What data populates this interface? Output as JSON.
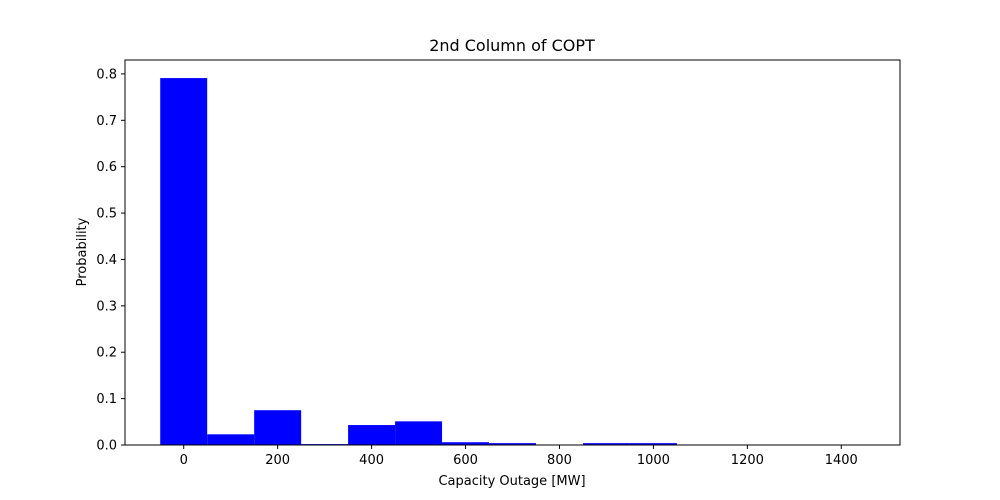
{
  "chart_data": {
    "type": "bar",
    "title": "2nd Column of COPT",
    "xlabel": "Capacity Outage [MW]",
    "ylabel": "Probability",
    "bar_width": 100,
    "x": [
      0,
      100,
      200,
      300,
      400,
      500,
      600,
      700,
      800,
      900,
      1000,
      1100,
      1200,
      1300,
      1400
    ],
    "values": [
      0.791,
      0.023,
      0.075,
      0.002,
      0.043,
      0.051,
      0.006,
      0.004,
      0.0,
      0.004,
      0.004,
      0.0,
      0.0,
      0.0,
      0.0
    ],
    "xlim": [
      -125,
      1525
    ],
    "ylim": [
      0,
      0.83
    ],
    "xticks": [
      0,
      200,
      400,
      600,
      800,
      1000,
      1200,
      1400
    ],
    "xtick_labels": [
      "0",
      "200",
      "400",
      "600",
      "800",
      "1000",
      "1200",
      "1400"
    ],
    "yticks": [
      0.0,
      0.1,
      0.2,
      0.3,
      0.4,
      0.5,
      0.6,
      0.7,
      0.8
    ],
    "ytick_labels": [
      "0.0",
      "0.1",
      "0.2",
      "0.3",
      "0.4",
      "0.5",
      "0.6",
      "0.7",
      "0.8"
    ],
    "bar_color": "#0000ff",
    "grid": false,
    "legend": "none"
  }
}
